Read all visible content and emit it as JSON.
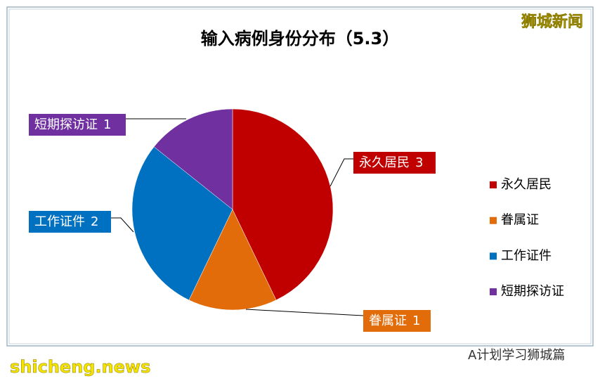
{
  "chart_data": {
    "type": "pie",
    "title": "输入病例身份分布（5.3）",
    "categories": [
      "永久居民",
      "眷属证",
      "工作证件",
      "短期探访证"
    ],
    "values": [
      3,
      1,
      2,
      1
    ],
    "colors": [
      "#c00000",
      "#e36c0a",
      "#0070c0",
      "#7030a0"
    ],
    "legend": "right"
  },
  "watermarks": {
    "brand": "狮城新闻",
    "site": "shicheng.news",
    "account": "A计划学习狮城篇"
  }
}
